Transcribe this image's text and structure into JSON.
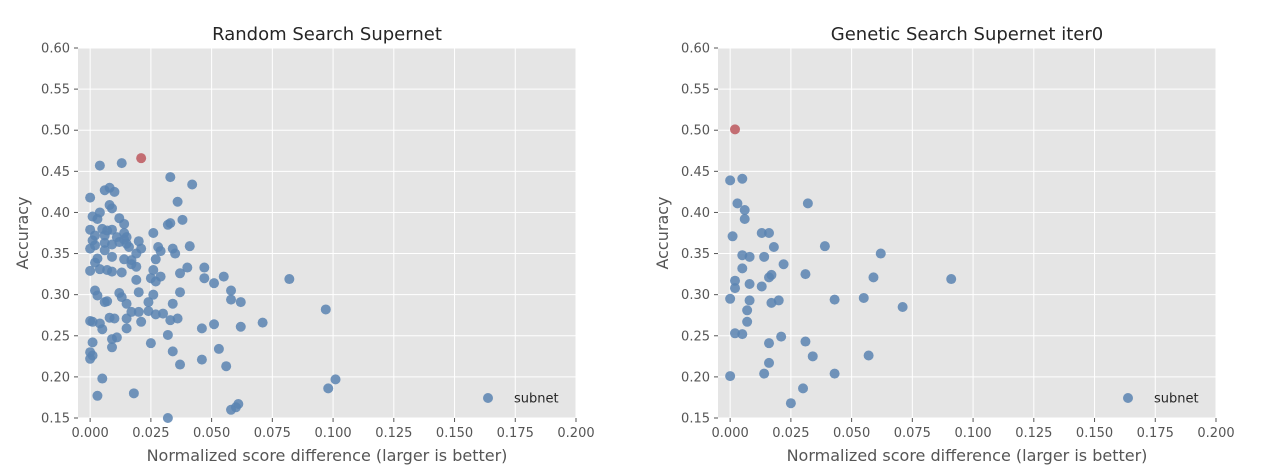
{
  "chart_data": [
    {
      "type": "scatter",
      "title": "Random Search Supernet",
      "xlabel": "Normalized score difference (larger is better)",
      "ylabel": "Accuracy",
      "xlim": [
        -0.005,
        0.2
      ],
      "ylim": [
        0.15,
        0.6
      ],
      "xticks": [
        "0.000",
        "0.025",
        "0.050",
        "0.075",
        "0.100",
        "0.125",
        "0.150",
        "0.175",
        "0.200"
      ],
      "yticks": [
        "0.15",
        "0.20",
        "0.25",
        "0.30",
        "0.35",
        "0.40",
        "0.45",
        "0.50",
        "0.55",
        "0.60"
      ],
      "grid": true,
      "legend": {
        "position": "bottom-right",
        "entries": [
          "subnet"
        ]
      },
      "colors": {
        "series": "#5b84b1",
        "highlight": "#c1666b",
        "background": "#e5e5e5"
      },
      "highlight": {
        "x": 0.021,
        "y": 0.466
      },
      "series": [
        {
          "name": "subnet",
          "points": [
            [
              0.004,
              0.457
            ],
            [
              0.013,
              0.46
            ],
            [
              0.033,
              0.443
            ],
            [
              0.042,
              0.434
            ],
            [
              0.006,
              0.427
            ],
            [
              0.008,
              0.43
            ],
            [
              0.01,
              0.425
            ],
            [
              0.0,
              0.418
            ],
            [
              0.036,
              0.413
            ],
            [
              0.008,
              0.409
            ],
            [
              0.009,
              0.405
            ],
            [
              0.004,
              0.4
            ],
            [
              0.001,
              0.395
            ],
            [
              0.012,
              0.393
            ],
            [
              0.003,
              0.392
            ],
            [
              0.038,
              0.391
            ],
            [
              0.033,
              0.387
            ],
            [
              0.014,
              0.386
            ],
            [
              0.032,
              0.385
            ],
            [
              0.005,
              0.38
            ],
            [
              0.007,
              0.378
            ],
            [
              0.009,
              0.379
            ],
            [
              0.0,
              0.379
            ],
            [
              0.014,
              0.375
            ],
            [
              0.026,
              0.375
            ],
            [
              0.002,
              0.372
            ],
            [
              0.006,
              0.372
            ],
            [
              0.011,
              0.37
            ],
            [
              0.015,
              0.37
            ],
            [
              0.014,
              0.367
            ],
            [
              0.001,
              0.366
            ],
            [
              0.012,
              0.364
            ],
            [
              0.02,
              0.365
            ],
            [
              0.006,
              0.363
            ],
            [
              0.015,
              0.362
            ],
            [
              0.009,
              0.361
            ],
            [
              0.002,
              0.36
            ],
            [
              0.016,
              0.358
            ],
            [
              0.021,
              0.356
            ],
            [
              0.034,
              0.356
            ],
            [
              0.028,
              0.358
            ],
            [
              0.041,
              0.359
            ],
            [
              0.0,
              0.356
            ],
            [
              0.006,
              0.354
            ],
            [
              0.029,
              0.353
            ],
            [
              0.035,
              0.35
            ],
            [
              0.019,
              0.35
            ],
            [
              0.009,
              0.346
            ],
            [
              0.014,
              0.343
            ],
            [
              0.003,
              0.344
            ],
            [
              0.017,
              0.342
            ],
            [
              0.027,
              0.343
            ],
            [
              0.002,
              0.339
            ],
            [
              0.017,
              0.337
            ],
            [
              0.019,
              0.334
            ],
            [
              0.04,
              0.333
            ],
            [
              0.047,
              0.333
            ],
            [
              0.004,
              0.331
            ],
            [
              0.007,
              0.33
            ],
            [
              0.026,
              0.33
            ],
            [
              0.009,
              0.328
            ],
            [
              0.0,
              0.329
            ],
            [
              0.013,
              0.327
            ],
            [
              0.037,
              0.326
            ],
            [
              0.055,
              0.322
            ],
            [
              0.025,
              0.32
            ],
            [
              0.029,
              0.322
            ],
            [
              0.082,
              0.319
            ],
            [
              0.019,
              0.318
            ],
            [
              0.047,
              0.32
            ],
            [
              0.027,
              0.316
            ],
            [
              0.051,
              0.314
            ],
            [
              0.058,
              0.305
            ],
            [
              0.002,
              0.305
            ],
            [
              0.02,
              0.303
            ],
            [
              0.026,
              0.3
            ],
            [
              0.037,
              0.303
            ],
            [
              0.012,
              0.302
            ],
            [
              0.003,
              0.299
            ],
            [
              0.013,
              0.297
            ],
            [
              0.006,
              0.291
            ],
            [
              0.024,
              0.291
            ],
            [
              0.062,
              0.291
            ],
            [
              0.034,
              0.289
            ],
            [
              0.015,
              0.289
            ],
            [
              0.007,
              0.292
            ],
            [
              0.058,
              0.294
            ],
            [
              0.017,
              0.279
            ],
            [
              0.097,
              0.282
            ],
            [
              0.02,
              0.279
            ],
            [
              0.024,
              0.28
            ],
            [
              0.027,
              0.276
            ],
            [
              0.03,
              0.277
            ],
            [
              0.008,
              0.272
            ],
            [
              0.01,
              0.271
            ],
            [
              0.015,
              0.271
            ],
            [
              0.033,
              0.269
            ],
            [
              0.036,
              0.271
            ],
            [
              0.021,
              0.267
            ],
            [
              0.071,
              0.266
            ],
            [
              0.0,
              0.268
            ],
            [
              0.004,
              0.265
            ],
            [
              0.001,
              0.267
            ],
            [
              0.051,
              0.264
            ],
            [
              0.062,
              0.261
            ],
            [
              0.046,
              0.259
            ],
            [
              0.015,
              0.259
            ],
            [
              0.005,
              0.258
            ],
            [
              0.032,
              0.251
            ],
            [
              0.009,
              0.246
            ],
            [
              0.011,
              0.248
            ],
            [
              0.001,
              0.242
            ],
            [
              0.025,
              0.241
            ],
            [
              0.009,
              0.236
            ],
            [
              0.053,
              0.234
            ],
            [
              0.034,
              0.231
            ],
            [
              0.0,
              0.23
            ],
            [
              0.001,
              0.226
            ],
            [
              0.0,
              0.222
            ],
            [
              0.046,
              0.221
            ],
            [
              0.037,
              0.215
            ],
            [
              0.056,
              0.213
            ],
            [
              0.005,
              0.198
            ],
            [
              0.101,
              0.197
            ],
            [
              0.098,
              0.186
            ],
            [
              0.018,
              0.18
            ],
            [
              0.003,
              0.177
            ],
            [
              0.061,
              0.167
            ],
            [
              0.06,
              0.163
            ],
            [
              0.058,
              0.16
            ],
            [
              0.032,
              0.15
            ]
          ]
        }
      ]
    },
    {
      "type": "scatter",
      "title": "Genetic Search Supernet iter0",
      "xlabel": "Normalized score difference (larger is better)",
      "ylabel": "Accuracy",
      "xlim": [
        -0.005,
        0.2
      ],
      "ylim": [
        0.15,
        0.6
      ],
      "xticks": [
        "0.000",
        "0.025",
        "0.050",
        "0.075",
        "0.100",
        "0.125",
        "0.150",
        "0.175",
        "0.200"
      ],
      "yticks": [
        "0.15",
        "0.20",
        "0.25",
        "0.30",
        "0.35",
        "0.40",
        "0.45",
        "0.50",
        "0.55",
        "0.60"
      ],
      "grid": true,
      "legend": {
        "position": "bottom-right",
        "entries": [
          "subnet"
        ]
      },
      "colors": {
        "series": "#5b84b1",
        "highlight": "#c1666b",
        "background": "#e5e5e5"
      },
      "highlight": {
        "x": 0.002,
        "y": 0.501
      },
      "series": [
        {
          "name": "subnet",
          "points": [
            [
              0.0,
              0.439
            ],
            [
              0.005,
              0.441
            ],
            [
              0.003,
              0.411
            ],
            [
              0.032,
              0.411
            ],
            [
              0.006,
              0.403
            ],
            [
              0.006,
              0.392
            ],
            [
              0.001,
              0.371
            ],
            [
              0.013,
              0.375
            ],
            [
              0.016,
              0.375
            ],
            [
              0.018,
              0.358
            ],
            [
              0.039,
              0.359
            ],
            [
              0.005,
              0.348
            ],
            [
              0.008,
              0.346
            ],
            [
              0.014,
              0.346
            ],
            [
              0.062,
              0.35
            ],
            [
              0.022,
              0.337
            ],
            [
              0.005,
              0.332
            ],
            [
              0.017,
              0.324
            ],
            [
              0.031,
              0.325
            ],
            [
              0.016,
              0.321
            ],
            [
              0.059,
              0.321
            ],
            [
              0.091,
              0.319
            ],
            [
              0.002,
              0.317
            ],
            [
              0.008,
              0.313
            ],
            [
              0.013,
              0.31
            ],
            [
              0.002,
              0.308
            ],
            [
              0.0,
              0.295
            ],
            [
              0.008,
              0.293
            ],
            [
              0.02,
              0.293
            ],
            [
              0.017,
              0.29
            ],
            [
              0.043,
              0.294
            ],
            [
              0.055,
              0.296
            ],
            [
              0.071,
              0.285
            ],
            [
              0.007,
              0.281
            ],
            [
              0.007,
              0.267
            ],
            [
              0.002,
              0.253
            ],
            [
              0.005,
              0.252
            ],
            [
              0.021,
              0.249
            ],
            [
              0.016,
              0.241
            ],
            [
              0.031,
              0.243
            ],
            [
              0.034,
              0.225
            ],
            [
              0.057,
              0.226
            ],
            [
              0.016,
              0.217
            ],
            [
              0.014,
              0.204
            ],
            [
              0.043,
              0.204
            ],
            [
              0.0,
              0.201
            ],
            [
              0.03,
              0.186
            ],
            [
              0.025,
              0.168
            ]
          ]
        }
      ]
    }
  ]
}
